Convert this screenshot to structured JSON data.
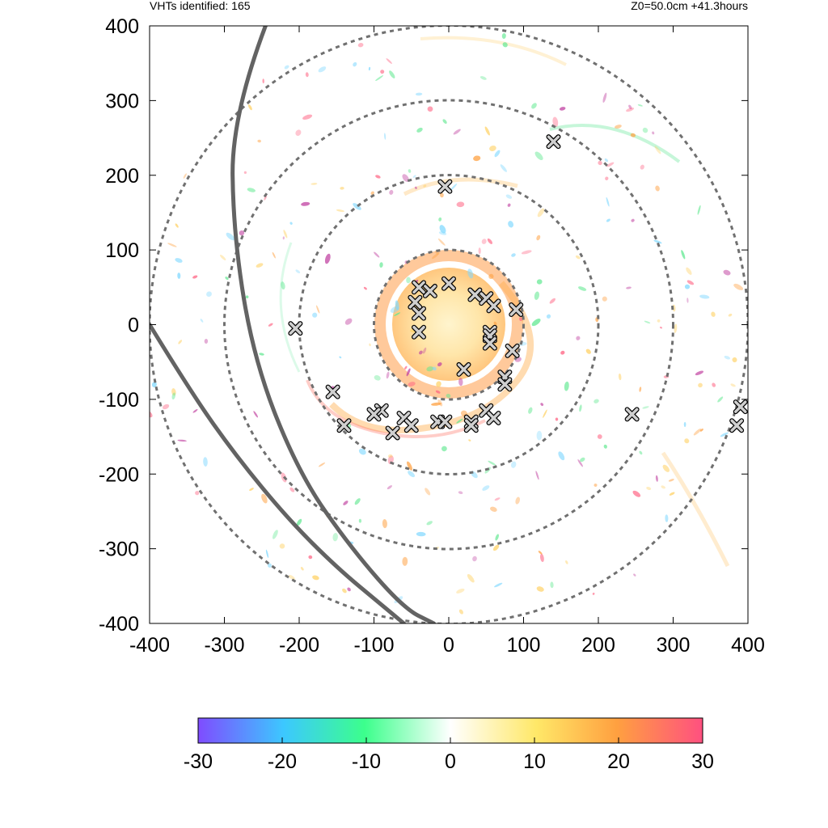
{
  "header": {
    "left": "VHTs identified: 165",
    "right": "Z0=50.0cm  +41.3hours"
  },
  "chart_data": {
    "type": "scatter",
    "title": "",
    "xlabel": "",
    "ylabel": "",
    "xlim": [
      -400,
      400
    ],
    "ylim": [
      -400,
      400
    ],
    "xticks": [
      "-400",
      "-300",
      "-200",
      "-100",
      "0",
      "100",
      "200",
      "300",
      "400"
    ],
    "yticks": [
      "400",
      "300",
      "200",
      "100",
      "0",
      "-100",
      "-200",
      "-300",
      "-400"
    ],
    "range_rings": [
      100,
      200,
      300,
      400
    ],
    "vht_markers": {
      "x": [
        -40,
        -25,
        0,
        35,
        50,
        60,
        90,
        -45,
        -40,
        55,
        55,
        55,
        85,
        -40,
        20,
        75,
        75,
        -155,
        -205,
        -90,
        -75,
        -140,
        -100,
        -60,
        -50,
        -15,
        -5,
        30,
        30,
        50,
        60,
        140,
        245,
        385,
        390,
        -5
      ],
      "y": [
        50,
        45,
        55,
        40,
        35,
        25,
        20,
        30,
        15,
        -10,
        -15,
        -25,
        -35,
        -10,
        -60,
        -70,
        -80,
        -90,
        -5,
        -115,
        -145,
        -135,
        -120,
        -125,
        -135,
        -130,
        -130,
        -130,
        -135,
        -115,
        -125,
        245,
        -120,
        -135,
        -110,
        185
      ]
    },
    "track_lines": [
      {
        "x": [
          -245,
          -290,
          -288,
          -260,
          -200,
          -130,
          -60,
          -20
        ],
        "y": [
          400,
          280,
          120,
          -50,
          -200,
          -300,
          -380,
          -400
        ]
      },
      {
        "x": [
          -400,
          -345,
          -285,
          -215,
          -150,
          -90,
          -60
        ],
        "y": [
          0,
          -90,
          -175,
          -260,
          -325,
          -375,
          -400
        ]
      }
    ],
    "colorbar": {
      "min": -30,
      "max": 30,
      "ticks": [
        "-30",
        "-20",
        "-10",
        "0",
        "10",
        "20",
        "30"
      ],
      "colors": [
        "#7f4cff",
        "#3cc8ff",
        "#3cff8c",
        "#ffffff",
        "#ffe868",
        "#ffa040",
        "#ff5080"
      ]
    }
  }
}
